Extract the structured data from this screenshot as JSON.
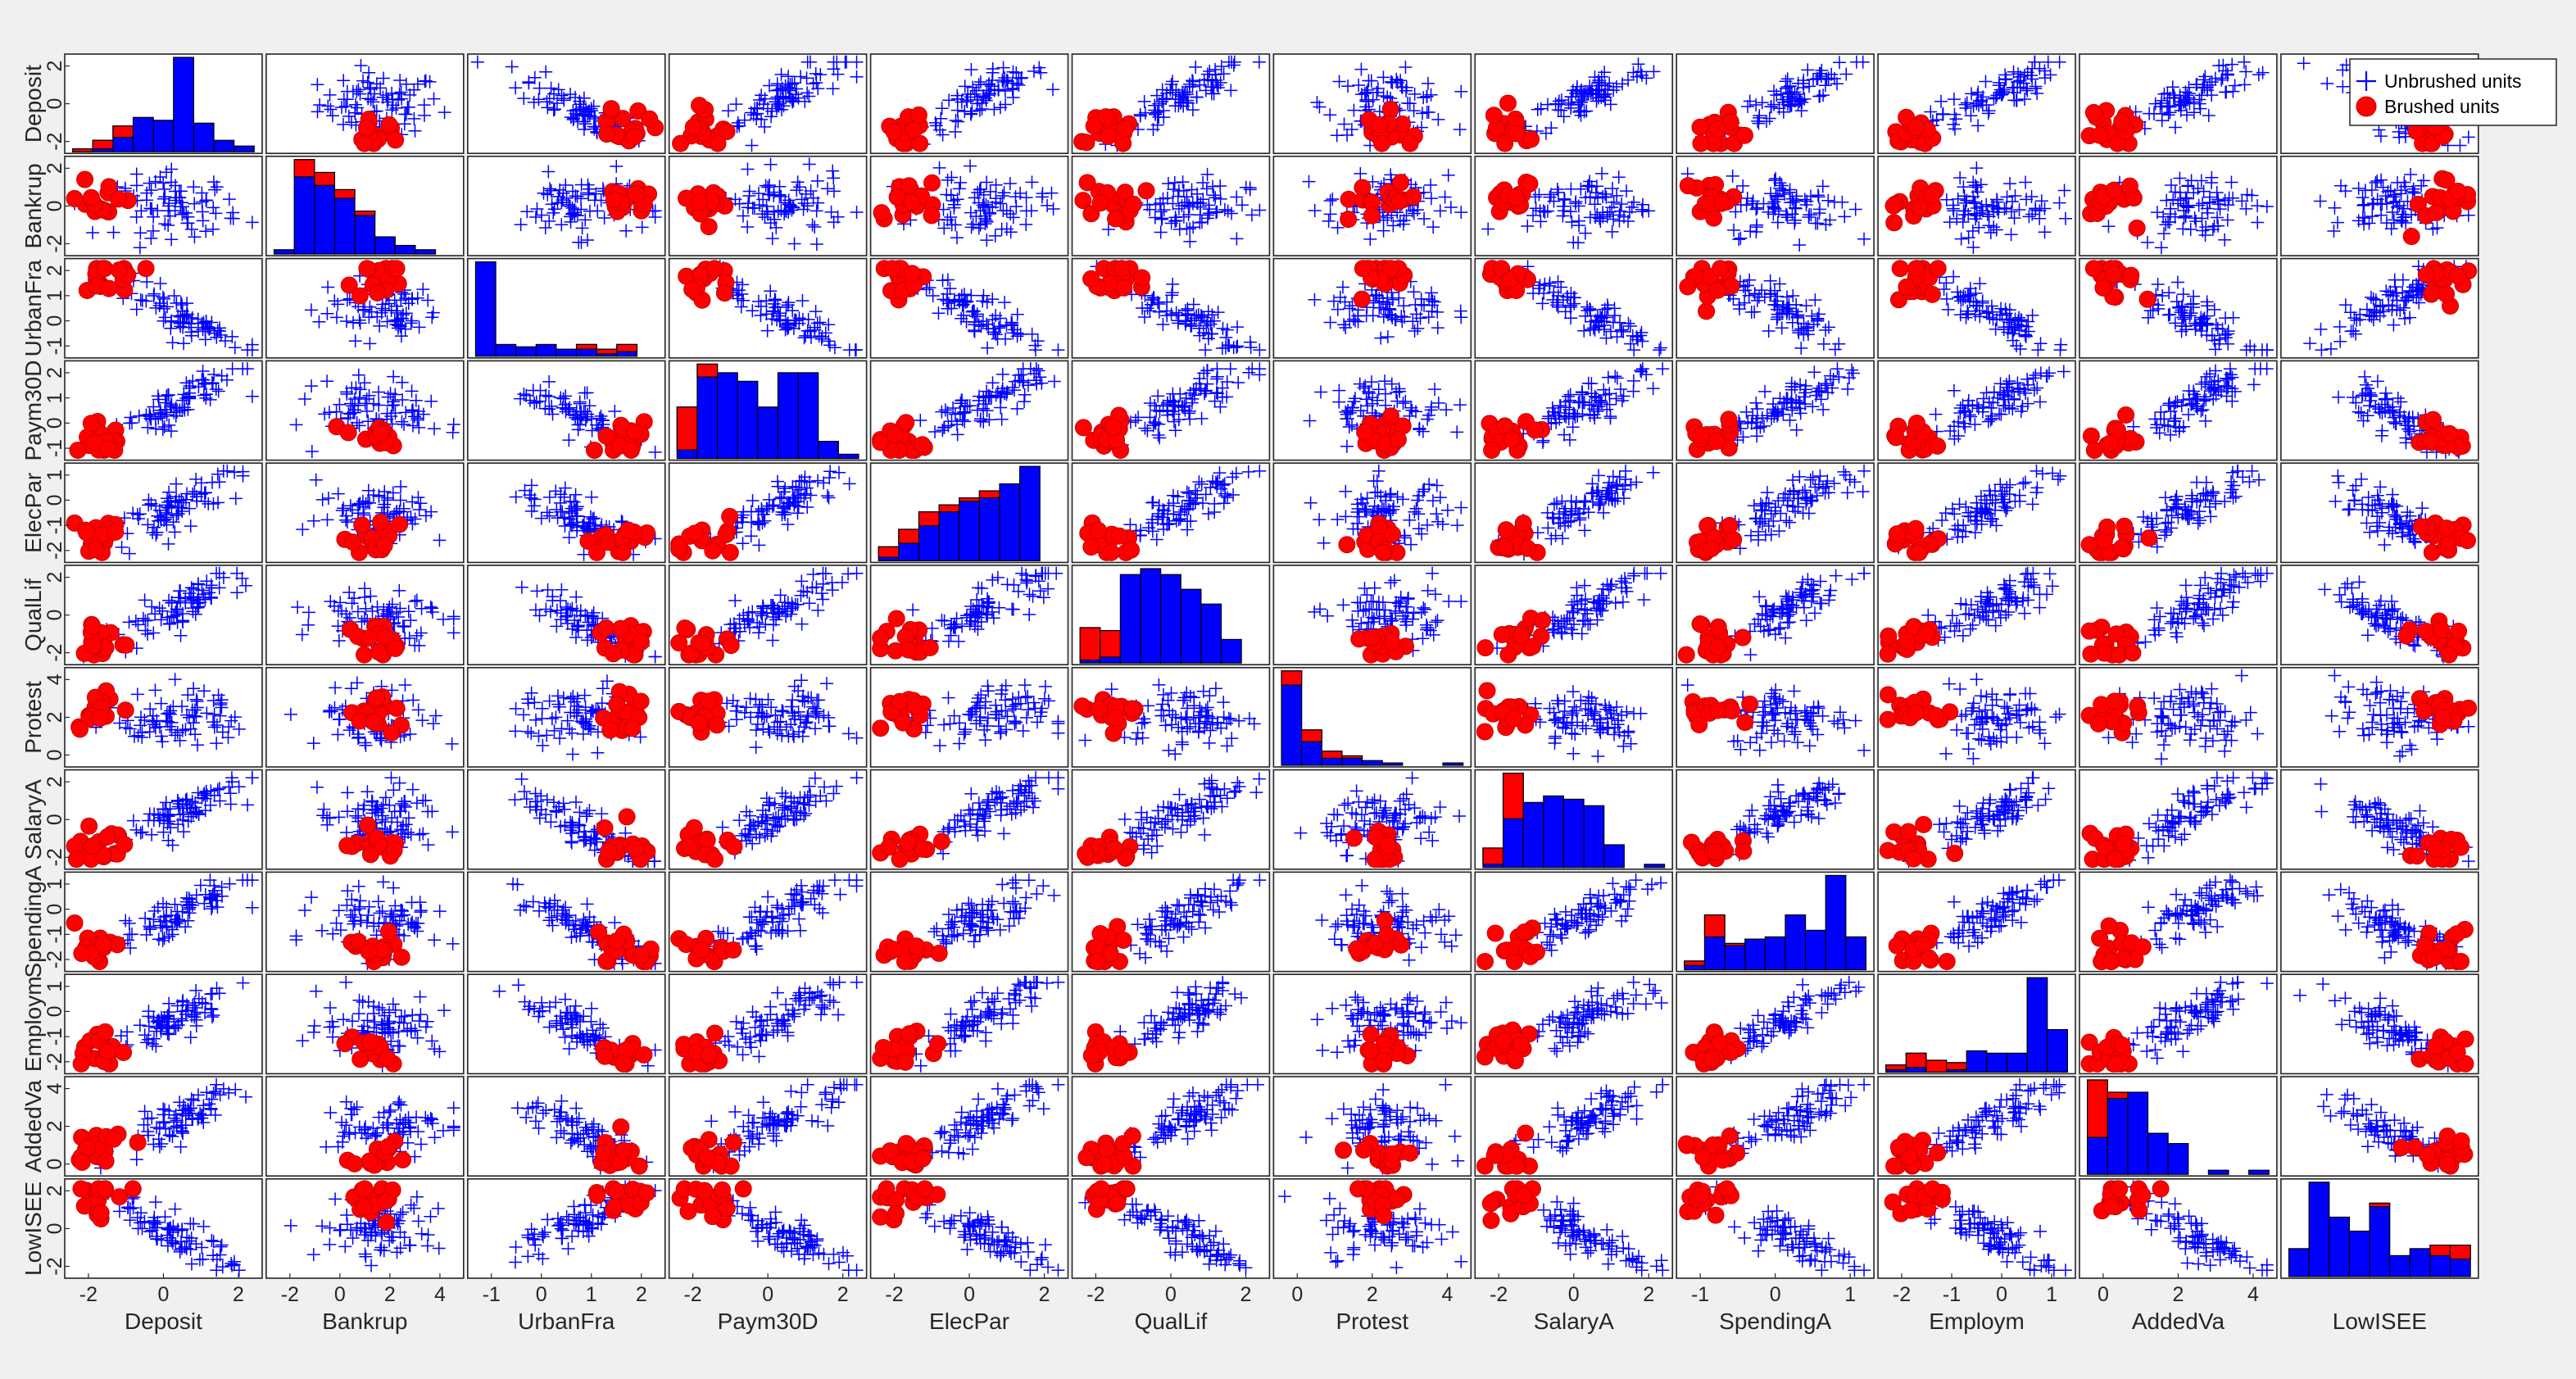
{
  "chart_data": {
    "type": "scatter",
    "variables": [
      "Deposit",
      "Bankrup",
      "UrbanFra",
      "Paym30D",
      "ElecPar",
      "QualLif",
      "Protest",
      "SalaryA",
      "SpendingA",
      "Employm",
      "AddedVa",
      "LowISEE"
    ],
    "legend": {
      "placement": "top-right",
      "entries": [
        {
          "name": "Unbrushed units",
          "marker": "+",
          "color": "#0000ff"
        },
        {
          "name": "Brushed units",
          "marker": "o",
          "color": "#ff0000"
        }
      ]
    },
    "x_ticks": {
      "Deposit": [
        "-2",
        "0",
        "2"
      ],
      "Bankrup": [
        "-2",
        "0",
        "2",
        "4"
      ],
      "UrbanFra": [
        "-1",
        "0",
        "1",
        "2"
      ],
      "Paym30D": [
        "-2",
        "0",
        "2"
      ],
      "ElecPar": [
        "-2",
        "0",
        "2"
      ],
      "QualLif": [
        "-2",
        "0",
        "2"
      ],
      "Protest": [
        "0",
        "2",
        "4"
      ],
      "SalaryA": [
        "-2",
        "0",
        "2"
      ],
      "SpendingA": [
        "-1",
        "0",
        "1"
      ],
      "Employm": [
        "-2",
        "-1",
        "0",
        "1"
      ],
      "AddedVa": [
        "0",
        "2",
        "4"
      ],
      "LowISEE": []
    },
    "y_ticks": {
      "Deposit": [
        "2",
        "0",
        "-2"
      ],
      "Bankrup": [
        "2",
        "0",
        "-2"
      ],
      "UrbanFra": [
        "2",
        "1",
        "0",
        "-1"
      ],
      "Paym30D": [
        "2",
        "1",
        "0",
        "-1"
      ],
      "ElecPar": [
        "1",
        "0",
        "-1",
        "-2"
      ],
      "QualLif": [
        "2",
        "0",
        "-2"
      ],
      "Protest": [
        "4",
        "2",
        "0"
      ],
      "SalaryA": [
        "2",
        "0",
        "-2"
      ],
      "SpendingA": [
        "1",
        "0",
        "-1",
        "-2"
      ],
      "Employm": [
        "1",
        "0",
        "-1",
        "-2"
      ],
      "AddedVa": [
        "4",
        "2",
        "0"
      ],
      "LowISEE": [
        "2",
        "0",
        "-2"
      ]
    },
    "histograms": {
      "Deposit": {
        "total": [
          1,
          4,
          9,
          12,
          11,
          33,
          10,
          4,
          2
        ],
        "brushed": [
          1,
          3,
          4,
          0,
          0,
          0,
          0,
          0,
          0
        ]
      },
      "Bankrup": {
        "total": [
          1,
          22,
          19,
          15,
          10,
          4,
          2,
          1,
          0
        ],
        "brushed": [
          0,
          4,
          3,
          2,
          1,
          0,
          0,
          0,
          0
        ]
      },
      "UrbanFra": {
        "total": [
          40,
          5,
          4,
          5,
          3,
          5,
          3,
          5,
          0
        ],
        "brushed": [
          0,
          0,
          0,
          0,
          0,
          2,
          2,
          3,
          0
        ]
      },
      "Paym30D": {
        "total": [
          12,
          22,
          20,
          18,
          12,
          20,
          20,
          4,
          1
        ],
        "brushed": [
          10,
          3,
          0,
          0,
          0,
          0,
          0,
          0,
          0
        ]
      },
      "ElecPar": {
        "total": [
          4,
          9,
          14,
          16,
          18,
          20,
          22,
          27,
          0
        ],
        "brushed": [
          3,
          4,
          4,
          2,
          1,
          2,
          0,
          0,
          0
        ]
      },
      "QualLif": {
        "total": [
          12,
          11,
          30,
          32,
          30,
          25,
          20,
          8,
          0
        ],
        "brushed": [
          11,
          9,
          0,
          0,
          0,
          0,
          0,
          0,
          0
        ]
      },
      "Protest": {
        "total": [
          40,
          15,
          6,
          4,
          2,
          1,
          0,
          0,
          1
        ],
        "brushed": [
          6,
          5,
          3,
          1,
          0,
          0,
          0,
          0,
          0
        ]
      },
      "SalaryA": {
        "total": [
          6,
          29,
          20,
          22,
          21,
          19,
          7,
          0,
          1
        ],
        "brushed": [
          5,
          14,
          0,
          0,
          0,
          0,
          0,
          0,
          0
        ]
      },
      "SpendingA": {
        "total": [
          4,
          25,
          12,
          14,
          15,
          25,
          18,
          43,
          15
        ],
        "brushed": [
          2,
          10,
          1,
          0,
          0,
          0,
          0,
          0,
          0
        ]
      },
      "Employm": {
        "total": [
          3,
          8,
          5,
          4,
          9,
          8,
          8,
          40,
          18
        ],
        "brushed": [
          2,
          6,
          5,
          3,
          0,
          0,
          0,
          0,
          0
        ]
      },
      "AddedVa": {
        "total": [
          46,
          40,
          40,
          20,
          15,
          0,
          2,
          0,
          2
        ],
        "brushed": [
          28,
          3,
          0,
          0,
          0,
          0,
          0,
          0,
          0
        ]
      },
      "LowISEE": {
        "total": [
          8,
          27,
          17,
          13,
          21,
          6,
          8,
          9,
          9
        ],
        "brushed": [
          0,
          0,
          0,
          0,
          1,
          0,
          0,
          3,
          4
        ]
      }
    }
  }
}
